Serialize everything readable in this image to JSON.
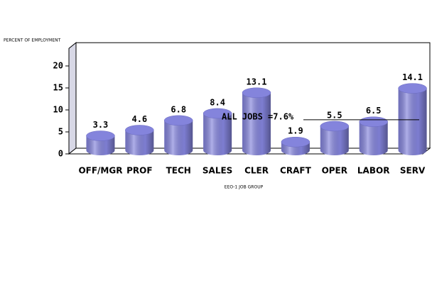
{
  "chart_data": {
    "type": "bar",
    "style": "cylinder",
    "y_label": "PERCENT OF EMPLOYMENT",
    "x_label": "EEO-1 JOB GROUP",
    "categories": [
      "OFF/MGR",
      "PROF",
      "TECH",
      "SALES",
      "CLER",
      "CRAFT",
      "OPER",
      "LABOR",
      "SERV"
    ],
    "values": [
      3.3,
      4.6,
      6.8,
      8.4,
      13.1,
      1.9,
      5.5,
      6.5,
      14.1
    ],
    "color": "#8484dc",
    "ylim": [
      0,
      24
    ],
    "yticks": [
      0,
      5,
      10,
      15,
      20
    ],
    "reference_line": {
      "value": 7.6,
      "label": "ALL JOBS =7.6%"
    }
  }
}
